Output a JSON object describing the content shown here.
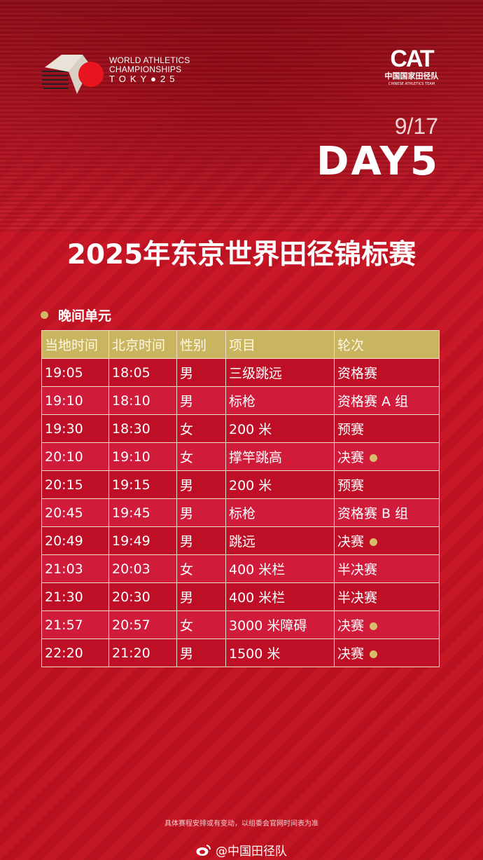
{
  "header": {
    "event_logo": {
      "lines": [
        "WORLD ATHLETICS",
        "CHAMPIONSHIPS",
        "TOKY●25"
      ]
    },
    "team_logo": {
      "mark": "CAT",
      "cn": "中国国家田径队",
      "en": "CHINESE ATHLETICS TEAM"
    },
    "date": "9/17",
    "day": "DAY5"
  },
  "title": "2025年东京世界田径锦标赛",
  "session": "晚间单元",
  "colors": {
    "header_bg": "#c9b45f",
    "row_dark": "#bf0f27",
    "row_light": "#d01b3b",
    "final_dot": "#d7bd6a"
  },
  "table": {
    "columns": [
      "当地时间",
      "北京时间",
      "性别",
      "项目",
      "轮次"
    ],
    "rows": [
      {
        "local": "19:05",
        "beijing": "18:05",
        "gender": "男",
        "event": "三级跳远",
        "round": "资格赛",
        "final": false
      },
      {
        "local": "19:10",
        "beijing": "18:10",
        "gender": "男",
        "event": "标枪",
        "round": "资格赛 A 组",
        "final": false
      },
      {
        "local": "19:30",
        "beijing": "18:30",
        "gender": "女",
        "event": "200 米",
        "round": "预赛",
        "final": false
      },
      {
        "local": "20:10",
        "beijing": "19:10",
        "gender": "女",
        "event": "撑竿跳高",
        "round": "决赛",
        "final": true
      },
      {
        "local": "20:15",
        "beijing": "19:15",
        "gender": "男",
        "event": "200 米",
        "round": "预赛",
        "final": false
      },
      {
        "local": "20:45",
        "beijing": "19:45",
        "gender": "男",
        "event": "标枪",
        "round": "资格赛 B 组",
        "final": false
      },
      {
        "local": "20:49",
        "beijing": "19:49",
        "gender": "男",
        "event": "跳远",
        "round": "决赛",
        "final": true
      },
      {
        "local": "21:03",
        "beijing": "20:03",
        "gender": "女",
        "event": "400 米栏",
        "round": "半决赛",
        "final": false
      },
      {
        "local": "21:30",
        "beijing": "20:30",
        "gender": "男",
        "event": "400 米栏",
        "round": "半决赛",
        "final": false
      },
      {
        "local": "21:57",
        "beijing": "20:57",
        "gender": "女",
        "event": "3000 米障碍",
        "round": "决赛",
        "final": true
      },
      {
        "local": "22:20",
        "beijing": "21:20",
        "gender": "男",
        "event": "1500 米",
        "round": "决赛",
        "final": true
      }
    ]
  },
  "footer": {
    "note": "具体赛程安排或有变动，以组委会官网时间表为准",
    "weibo": "@中国田径队"
  }
}
